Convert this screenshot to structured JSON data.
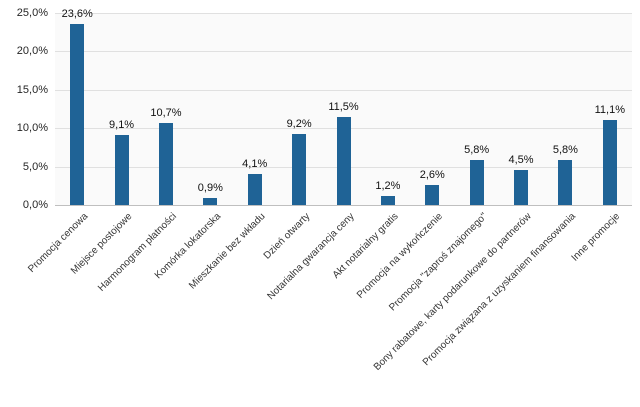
{
  "chart_data": {
    "type": "bar",
    "title": "",
    "xlabel": "",
    "ylabel": "",
    "legend": false,
    "grid": true,
    "categories": [
      "Promocja cenowa",
      "Miejsce postojowe",
      "Harmonogram płatności",
      "Komórka lokatorska",
      "Mieszkanie bez wkładu",
      "Dzień otwarty",
      "Notarialna gwarancja ceny",
      "Akt notarialny gratis",
      "Promocja na wykończenie",
      "Promocja \"zaproś znajomego\"",
      "Bony rabatowe, karty podarunkowe do partnerów",
      "Promocja związana z uzyskaniem finansowania",
      "Inne promocje"
    ],
    "values": [
      23.6,
      9.1,
      10.7,
      0.9,
      4.1,
      9.2,
      11.5,
      1.2,
      2.6,
      5.8,
      4.5,
      5.8,
      11.1
    ],
    "data_labels": [
      "23,6%",
      "9,1%",
      "10,7%",
      "0,9%",
      "4,1%",
      "9,2%",
      "11,5%",
      "1,2%",
      "2,6%",
      "5,8%",
      "4,5%",
      "5,8%",
      "11,1%"
    ],
    "y_axis": {
      "range": [
        0,
        25
      ],
      "ticks": [
        0,
        5,
        10,
        15,
        20,
        25
      ],
      "tick_labels": [
        "0,0%",
        "5,0%",
        "10,0%",
        "15,0%",
        "20,0%",
        "25,0%"
      ]
    }
  },
  "colors": {
    "bar_fill": "#1f6396",
    "plot_background": "#fafafa",
    "gridline": "#e0e0e0",
    "x_axis_line": "#bfbfbf",
    "y_tick_text": "#262626",
    "data_label_text": "#111111",
    "x_label_text": "#333333",
    "page_background": "#ffffff"
  }
}
